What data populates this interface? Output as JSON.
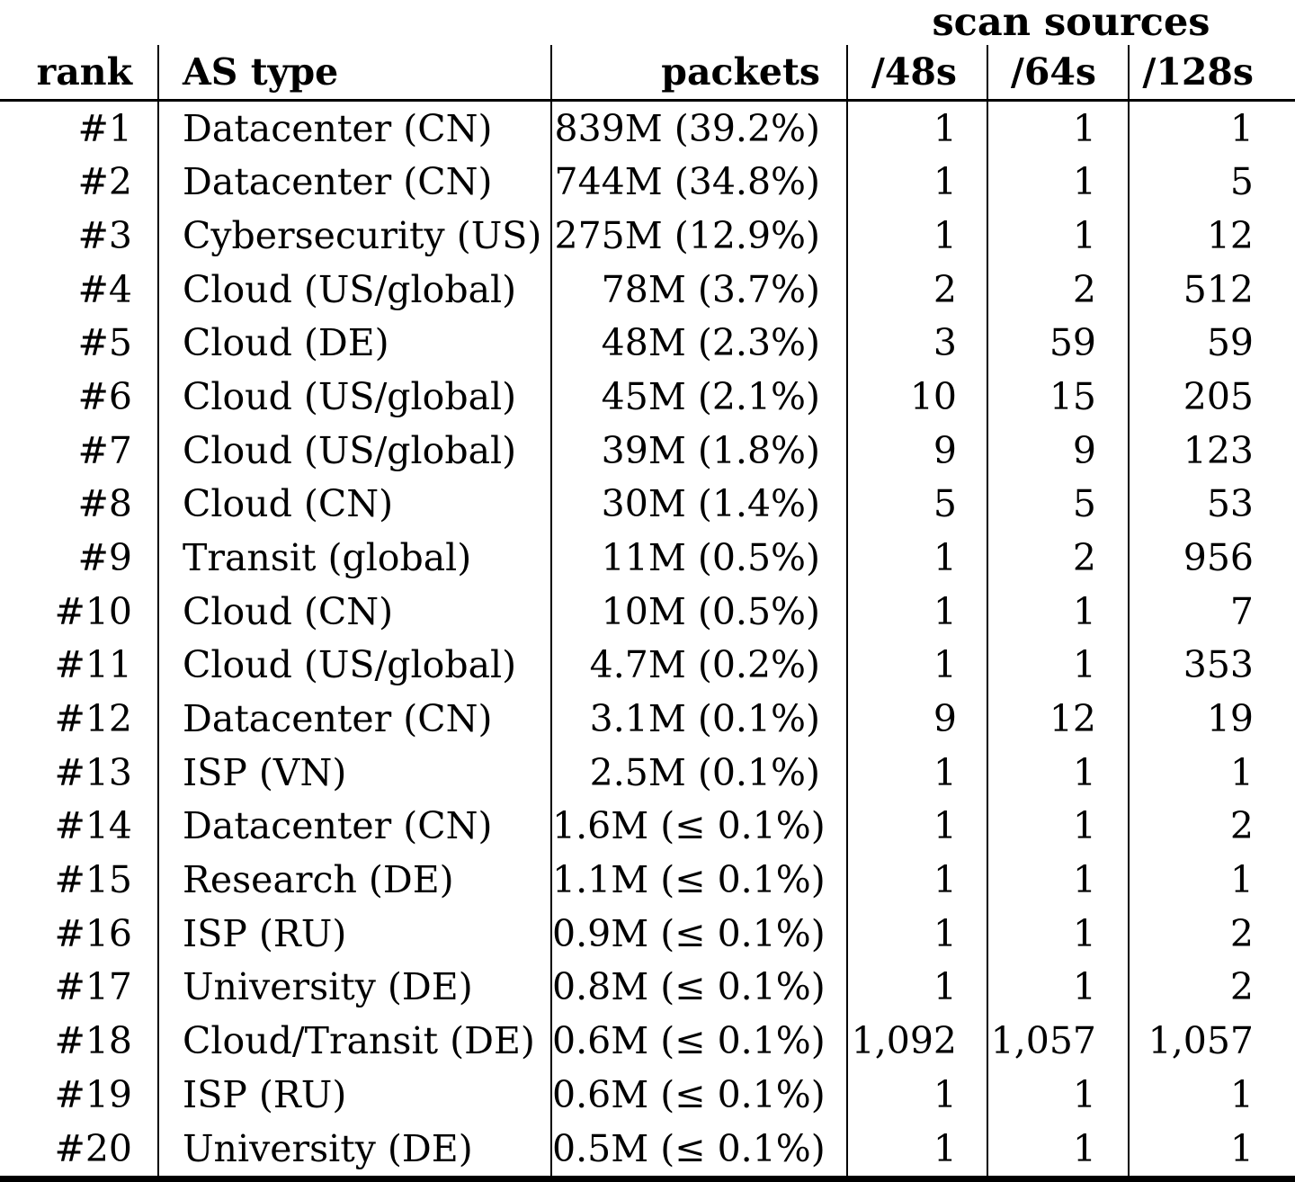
{
  "table": {
    "group_header": "scan sources",
    "columns": {
      "rank": "rank",
      "as_type": "AS type",
      "packets": "packets",
      "s48": "/48s",
      "s64": "/64s",
      "s128": "/128s"
    },
    "rows": [
      {
        "rank": "#1",
        "as_type": "Datacenter (CN)",
        "packets": "839M (39.2%)",
        "s48": "1",
        "s64": "1",
        "s128": "1"
      },
      {
        "rank": "#2",
        "as_type": "Datacenter (CN)",
        "packets": "744M (34.8%)",
        "s48": "1",
        "s64": "1",
        "s128": "5"
      },
      {
        "rank": "#3",
        "as_type": "Cybersecurity (US)",
        "packets": "275M (12.9%)",
        "s48": "1",
        "s64": "1",
        "s128": "12"
      },
      {
        "rank": "#4",
        "as_type": "Cloud (US/global)",
        "packets": "78M (3.7%)",
        "s48": "2",
        "s64": "2",
        "s128": "512"
      },
      {
        "rank": "#5",
        "as_type": "Cloud (DE)",
        "packets": "48M (2.3%)",
        "s48": "3",
        "s64": "59",
        "s128": "59"
      },
      {
        "rank": "#6",
        "as_type": "Cloud (US/global)",
        "packets": "45M (2.1%)",
        "s48": "10",
        "s64": "15",
        "s128": "205"
      },
      {
        "rank": "#7",
        "as_type": "Cloud (US/global)",
        "packets": "39M (1.8%)",
        "s48": "9",
        "s64": "9",
        "s128": "123"
      },
      {
        "rank": "#8",
        "as_type": "Cloud (CN)",
        "packets": "30M (1.4%)",
        "s48": "5",
        "s64": "5",
        "s128": "53"
      },
      {
        "rank": "#9",
        "as_type": "Transit (global)",
        "packets": "11M (0.5%)",
        "s48": "1",
        "s64": "2",
        "s128": "956"
      },
      {
        "rank": "#10",
        "as_type": "Cloud (CN)",
        "packets": "10M (0.5%)",
        "s48": "1",
        "s64": "1",
        "s128": "7"
      },
      {
        "rank": "#11",
        "as_type": "Cloud (US/global)",
        "packets": "4.7M (0.2%)",
        "s48": "1",
        "s64": "1",
        "s128": "353"
      },
      {
        "rank": "#12",
        "as_type": "Datacenter (CN)",
        "packets": "3.1M (0.1%)",
        "s48": "9",
        "s64": "12",
        "s128": "19"
      },
      {
        "rank": "#13",
        "as_type": "ISP (VN)",
        "packets": "2.5M (0.1%)",
        "s48": "1",
        "s64": "1",
        "s128": "1"
      },
      {
        "rank": "#14",
        "as_type": "Datacenter (CN)",
        "packets": "1.6M (≤ 0.1%)",
        "s48": "1",
        "s64": "1",
        "s128": "2"
      },
      {
        "rank": "#15",
        "as_type": "Research (DE)",
        "packets": "1.1M (≤ 0.1%)",
        "s48": "1",
        "s64": "1",
        "s128": "1"
      },
      {
        "rank": "#16",
        "as_type": "ISP (RU)",
        "packets": "0.9M (≤ 0.1%)",
        "s48": "1",
        "s64": "1",
        "s128": "2"
      },
      {
        "rank": "#17",
        "as_type": "University (DE)",
        "packets": "0.8M (≤ 0.1%)",
        "s48": "1",
        "s64": "1",
        "s128": "2"
      },
      {
        "rank": "#18",
        "as_type": "Cloud/Transit (DE)",
        "packets": "0.6M (≤ 0.1%)",
        "s48": "1,092",
        "s64": "1,057",
        "s128": "1,057"
      },
      {
        "rank": "#19",
        "as_type": "ISP (RU)",
        "packets": "0.6M (≤ 0.1%)",
        "s48": "1",
        "s64": "1",
        "s128": "1"
      },
      {
        "rank": "#20",
        "as_type": "University (DE)",
        "packets": "0.5M (≤ 0.1%)",
        "s48": "1",
        "s64": "1",
        "s128": "1"
      }
    ]
  }
}
